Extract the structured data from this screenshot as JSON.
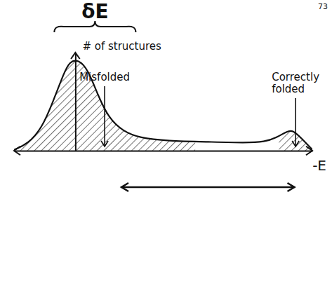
{
  "page_number": "73",
  "chart_data": {
    "type": "area",
    "title": "δE",
    "x_label": "-E",
    "y_label": "# of structures",
    "x": [
      -2.2,
      -1.7,
      -1.2,
      -0.8,
      -0.4,
      -0.2,
      0.1,
      0.45,
      0.8,
      1.2,
      1.7,
      2.3,
      3.3,
      4.8,
      6.1,
      6.8,
      7.2,
      7.6,
      7.8,
      8.1,
      8.5
    ],
    "values": [
      0.1,
      0.7,
      2.3,
      5,
      8,
      9.1,
      9.3,
      8.3,
      5.7,
      3.3,
      2,
      1.3,
      1,
      0.9,
      0.8,
      0.9,
      1.3,
      2,
      2.1,
      1.3,
      0.1
    ],
    "xlim": [
      -2.2,
      8.5
    ],
    "ylim": [
      0,
      10
    ],
    "xticks": [],
    "yticks": [],
    "tick_labels": false,
    "grid": false,
    "annotations": [
      {
        "text": "Misfolded",
        "x_range": [
          -2.2,
          4.3
        ]
      },
      {
        "text": "Correctly folded",
        "x_range": [
          7.3,
          8.5
        ]
      }
    ]
  }
}
